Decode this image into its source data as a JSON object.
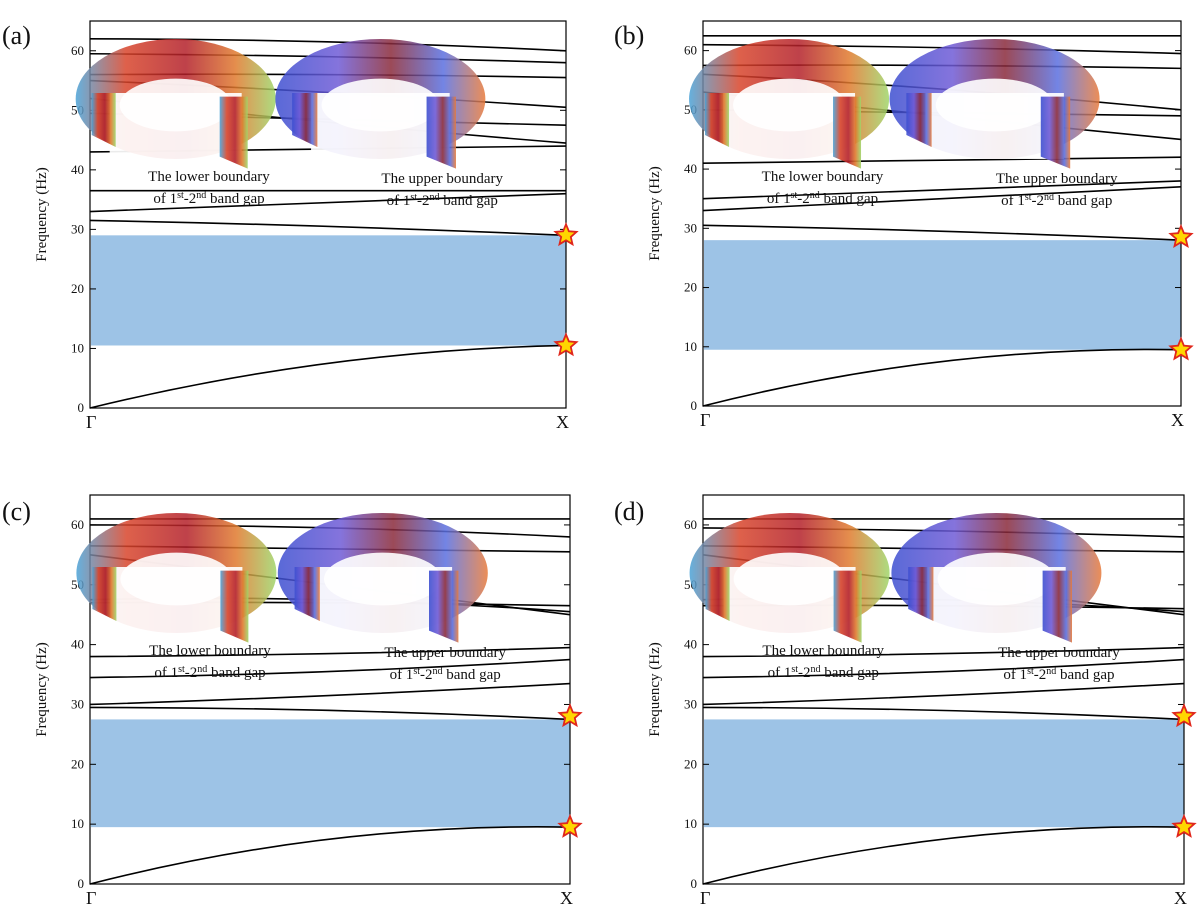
{
  "figure": {
    "axis_label": "Frequency (Hz)",
    "x_ticks": [
      "Γ",
      "X"
    ],
    "y_ticks": [
      "0",
      "10",
      "20",
      "30",
      "40",
      "50",
      "60"
    ],
    "colors": {
      "band_gap": "#9dc3e6",
      "band_line": "#000000",
      "star_fill": "#ffd700",
      "star_stroke": "#e0271c"
    },
    "annotation_lower": {
      "line1": "The lower boundary",
      "line2_pre": "of 1",
      "sup1": "st",
      "mid": "-2",
      "sup2": "nd",
      "tail": " band gap"
    },
    "annotation_upper": {
      "line1": "The upper boundary",
      "line2_pre": "of 1",
      "sup1": "st",
      "mid": "-2",
      "sup2": "nd",
      "tail": " band gap"
    },
    "mode_shape_icons": [
      "torus-mode-shape-lower",
      "torus-mode-shape-upper"
    ]
  },
  "chart_data": [
    {
      "type": "line",
      "panel": "(a)",
      "ylim": [
        0,
        65
      ],
      "band_gap": [
        10.5,
        29
      ],
      "series": [
        {
          "x": [
            0,
            0.5,
            1
          ],
          "y": [
            0,
            7.5,
            10.5
          ]
        },
        {
          "x": [
            0,
            0.5,
            1
          ],
          "y": [
            31.5,
            30.5,
            29
          ]
        },
        {
          "x": [
            0,
            0.5,
            1
          ],
          "y": [
            33,
            34.5,
            36
          ]
        },
        {
          "x": [
            0,
            0.5,
            1
          ],
          "y": [
            36.5,
            36.5,
            36.5
          ]
        },
        {
          "x": [
            0,
            0.5,
            1
          ],
          "y": [
            43,
            43.5,
            44
          ]
        },
        {
          "x": [
            0,
            0.5,
            1
          ],
          "y": [
            49.5,
            48.5,
            47.5
          ]
        },
        {
          "x": [
            0,
            0.5,
            1
          ],
          "y": [
            52,
            48,
            44.5
          ]
        },
        {
          "x": [
            0,
            0.5,
            1
          ],
          "y": [
            55,
            53,
            50.5
          ]
        },
        {
          "x": [
            0,
            0.5,
            1
          ],
          "y": [
            56,
            56,
            55.5
          ]
        },
        {
          "x": [
            0,
            0.5,
            1
          ],
          "y": [
            59.5,
            59,
            58
          ]
        },
        {
          "x": [
            0,
            0.5,
            1
          ],
          "y": [
            62,
            61.5,
            60
          ]
        }
      ],
      "markers": [
        {
          "x": 1,
          "y": 29
        },
        {
          "x": 1,
          "y": 10.5
        }
      ]
    },
    {
      "type": "line",
      "panel": "(b)",
      "ylim": [
        0,
        65
      ],
      "band_gap": [
        9.5,
        28
      ],
      "series": [
        {
          "x": [
            0,
            0.5,
            1
          ],
          "y": [
            0,
            7.5,
            9.5
          ]
        },
        {
          "x": [
            0,
            0.5,
            1
          ],
          "y": [
            30.5,
            29.5,
            28
          ]
        },
        {
          "x": [
            0,
            0.5,
            1
          ],
          "y": [
            33,
            35,
            37
          ]
        },
        {
          "x": [
            0,
            0.5,
            1
          ],
          "y": [
            35,
            36.5,
            38
          ]
        },
        {
          "x": [
            0,
            0.5,
            1
          ],
          "y": [
            41,
            41.5,
            42
          ]
        },
        {
          "x": [
            0,
            0.5,
            1
          ],
          "y": [
            50,
            49.5,
            49
          ]
        },
        {
          "x": [
            0,
            0.5,
            1
          ],
          "y": [
            53,
            49,
            45
          ]
        },
        {
          "x": [
            0,
            0.5,
            1
          ],
          "y": [
            56,
            53.5,
            50
          ]
        },
        {
          "x": [
            0,
            0.5,
            1
          ],
          "y": [
            57.5,
            57.5,
            57
          ]
        },
        {
          "x": [
            0,
            0.5,
            1
          ],
          "y": [
            61,
            60.5,
            59.5
          ]
        },
        {
          "x": [
            0,
            0.5,
            1
          ],
          "y": [
            62.5,
            62.5,
            62.5
          ]
        }
      ],
      "markers": [
        {
          "x": 1,
          "y": 28.5
        },
        {
          "x": 1,
          "y": 9.5
        }
      ]
    },
    {
      "type": "line",
      "panel": "(c)",
      "ylim": [
        0,
        65
      ],
      "band_gap": [
        9.5,
        27.5
      ],
      "series": [
        {
          "x": [
            0,
            0.5,
            1
          ],
          "y": [
            0,
            7.5,
            9.5
          ]
        },
        {
          "x": [
            0,
            0.5,
            1
          ],
          "y": [
            29.5,
            29,
            27.5
          ]
        },
        {
          "x": [
            0,
            0.5,
            1
          ],
          "y": [
            30,
            31.5,
            33.5
          ]
        },
        {
          "x": [
            0,
            0.5,
            1
          ],
          "y": [
            34.5,
            35.5,
            37.5
          ]
        },
        {
          "x": [
            0,
            0.5,
            1
          ],
          "y": [
            38,
            38.5,
            39.5
          ]
        },
        {
          "x": [
            0,
            0.5,
            1
          ],
          "y": [
            47,
            47,
            46.5
          ]
        },
        {
          "x": [
            0,
            0.5,
            1
          ],
          "y": [
            47.5,
            47.5,
            45.5
          ]
        },
        {
          "x": [
            0,
            0.5,
            1
          ],
          "y": [
            55,
            50,
            45
          ]
        },
        {
          "x": [
            0,
            0.5,
            1
          ],
          "y": [
            56.5,
            56,
            55.5
          ]
        },
        {
          "x": [
            0,
            0.5,
            1
          ],
          "y": [
            60,
            59.5,
            58
          ]
        },
        {
          "x": [
            0,
            0.5,
            1
          ],
          "y": [
            61,
            61,
            61
          ]
        }
      ],
      "markers": [
        {
          "x": 1,
          "y": 28
        },
        {
          "x": 1,
          "y": 9.5
        }
      ]
    },
    {
      "type": "line",
      "panel": "(d)",
      "ylim": [
        0,
        65
      ],
      "band_gap": [
        9.5,
        27.5
      ],
      "series": [
        {
          "x": [
            0,
            0.5,
            1
          ],
          "y": [
            0,
            7.5,
            9.5
          ]
        },
        {
          "x": [
            0,
            0.5,
            1
          ],
          "y": [
            29.5,
            29,
            27.5
          ]
        },
        {
          "x": [
            0,
            0.5,
            1
          ],
          "y": [
            30,
            31.5,
            33.5
          ]
        },
        {
          "x": [
            0,
            0.5,
            1
          ],
          "y": [
            34.5,
            35.5,
            37.5
          ]
        },
        {
          "x": [
            0,
            0.5,
            1
          ],
          "y": [
            38,
            38.5,
            39.5
          ]
        },
        {
          "x": [
            0,
            0.5,
            1
          ],
          "y": [
            46.5,
            46.5,
            46
          ]
        },
        {
          "x": [
            0,
            0.5,
            1
          ],
          "y": [
            47.5,
            47.5,
            45.5
          ]
        },
        {
          "x": [
            0,
            0.5,
            1
          ],
          "y": [
            55,
            50,
            45
          ]
        },
        {
          "x": [
            0,
            0.5,
            1
          ],
          "y": [
            56.5,
            56,
            55.5
          ]
        },
        {
          "x": [
            0,
            0.5,
            1
          ],
          "y": [
            59.5,
            59,
            58
          ]
        },
        {
          "x": [
            0,
            0.5,
            1
          ],
          "y": [
            61,
            61,
            61
          ]
        }
      ],
      "markers": [
        {
          "x": 1,
          "y": 28
        },
        {
          "x": 1,
          "y": 9.5
        }
      ]
    }
  ]
}
